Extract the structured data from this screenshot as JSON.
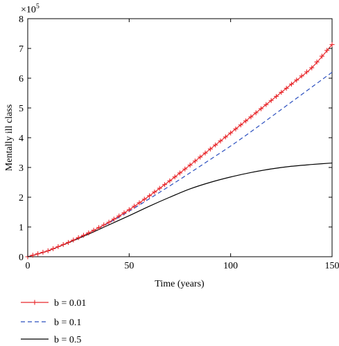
{
  "chart_data": {
    "type": "line",
    "title": "",
    "xlabel": "Time (years)",
    "ylabel": "Mentally ill class",
    "xlim": [
      0,
      150
    ],
    "ylim": [
      0,
      8
    ],
    "y_multiplier_label": "×10",
    "y_multiplier_exp": "5",
    "x_ticks": [
      0,
      50,
      100,
      150
    ],
    "y_ticks": [
      0,
      1,
      2,
      3,
      4,
      5,
      6,
      7,
      8
    ],
    "grid": false,
    "legend_position": "below plot",
    "series": [
      {
        "name": "b = 0.01",
        "color": "#e8262a",
        "style": "solid-plus",
        "x": [
          0,
          10,
          20,
          30,
          40,
          50,
          60,
          70,
          80,
          90,
          100,
          110,
          120,
          130,
          140,
          150
        ],
        "y": [
          0.0,
          0.2,
          0.48,
          0.8,
          1.16,
          1.58,
          2.05,
          2.55,
          3.08,
          3.62,
          4.16,
          4.7,
          5.25,
          5.8,
          6.35,
          7.13
        ]
      },
      {
        "name": "b = 0.1",
        "color": "#2b4fbf",
        "style": "dashed",
        "x": [
          0,
          10,
          20,
          30,
          40,
          50,
          60,
          70,
          80,
          90,
          100,
          110,
          120,
          130,
          140,
          150
        ],
        "y": [
          0.0,
          0.2,
          0.48,
          0.8,
          1.14,
          1.53,
          1.95,
          2.38,
          2.82,
          3.27,
          3.72,
          4.2,
          4.7,
          5.2,
          5.7,
          6.2
        ]
      },
      {
        "name": "b = 0.5",
        "color": "#000000",
        "style": "solid",
        "x": [
          0,
          10,
          20,
          30,
          40,
          50,
          60,
          70,
          80,
          90,
          100,
          110,
          120,
          130,
          140,
          150
        ],
        "y": [
          0.0,
          0.2,
          0.47,
          0.76,
          1.07,
          1.38,
          1.7,
          2.0,
          2.28,
          2.5,
          2.68,
          2.83,
          2.95,
          3.04,
          3.1,
          3.15
        ]
      }
    ]
  }
}
